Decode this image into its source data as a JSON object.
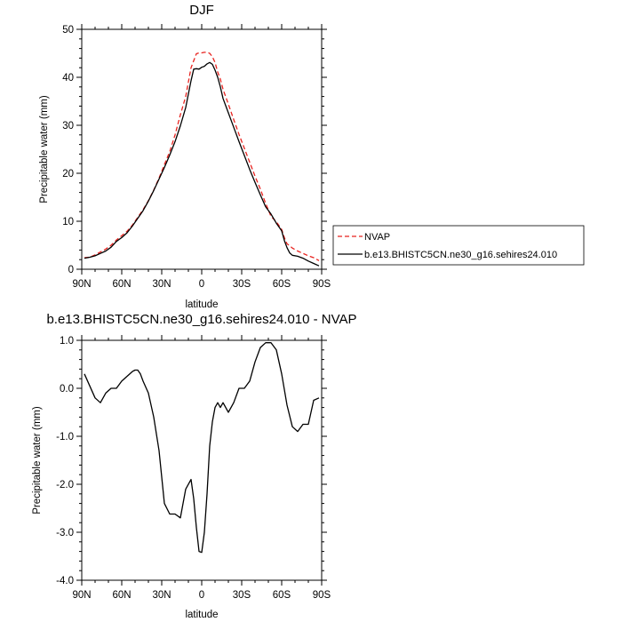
{
  "chart_data": [
    {
      "type": "line",
      "title": "DJF",
      "xlabel": "latitude",
      "ylabel": "Precipitable water (mm)",
      "xlim": [
        -90,
        90
      ],
      "ylim": [
        0,
        50
      ],
      "x_ticks": [
        -90,
        -60,
        -30,
        0,
        30,
        60,
        90
      ],
      "x_tick_labels": [
        "90N",
        "60N",
        "30N",
        "0",
        "30S",
        "60S",
        "90S"
      ],
      "y_ticks": [
        0,
        10,
        20,
        30,
        40,
        50
      ],
      "y_tick_labels": [
        "0",
        "10",
        "20",
        "30",
        "40",
        "50"
      ],
      "legend_position": "right",
      "series": [
        {
          "name": "NVAP",
          "color": "#e8231f",
          "dash": "dashed",
          "x": [
            -88,
            -84,
            -80,
            -76,
            -72,
            -68,
            -64,
            -60,
            -56,
            -52,
            -48,
            -44,
            -40,
            -36,
            -32,
            -28,
            -24,
            -20,
            -16,
            -12,
            -8,
            -4,
            -2,
            0,
            2,
            4,
            6,
            8,
            10,
            12,
            14,
            16,
            20,
            24,
            28,
            32,
            36,
            40,
            44,
            48,
            52,
            56,
            60,
            62,
            64,
            66,
            68,
            72,
            76,
            80,
            84,
            88
          ],
          "y": [
            2.4,
            2.5,
            3.0,
            3.6,
            4.2,
            5.0,
            6.1,
            7.0,
            7.9,
            9.2,
            10.8,
            12.4,
            14.3,
            16.5,
            19.0,
            21.8,
            24.5,
            28.0,
            32.2,
            36.0,
            42.0,
            44.9,
            45.1,
            45.1,
            45.2,
            45.2,
            45.0,
            44.3,
            43.1,
            41.1,
            39.6,
            37.5,
            34.4,
            31.2,
            28.1,
            25.2,
            22.3,
            19.4,
            16.7,
            13.7,
            11.0,
            9.9,
            8.3,
            6.6,
            5.3,
            4.9,
            4.4,
            3.8,
            3.3,
            2.8,
            2.4,
            1.8
          ]
        },
        {
          "name": "b.e13.BHISTC5CN.ne30_g16.sehires24.010",
          "color": "#000000",
          "dash": "solid",
          "x": [
            -88,
            -84,
            -80,
            -76,
            -72,
            -68,
            -64,
            -60,
            -56,
            -52,
            -48,
            -44,
            -40,
            -36,
            -32,
            -28,
            -24,
            -20,
            -16,
            -12,
            -8,
            -6,
            -4,
            -2,
            0,
            2,
            4,
            6,
            8,
            10,
            12,
            14,
            16,
            20,
            24,
            28,
            32,
            36,
            40,
            44,
            48,
            52,
            56,
            60,
            62,
            64,
            66,
            68,
            72,
            76,
            80,
            84,
            88
          ],
          "y": [
            2.3,
            2.5,
            2.8,
            3.3,
            3.8,
            4.6,
            5.8,
            6.6,
            7.6,
            9.0,
            10.6,
            12.2,
            14.2,
            16.4,
            18.8,
            21.2,
            23.8,
            26.6,
            29.9,
            33.7,
            39.3,
            41.7,
            41.8,
            41.7,
            42.1,
            42.3,
            42.8,
            43.1,
            42.7,
            41.5,
            40.0,
            38.0,
            35.6,
            32.6,
            29.6,
            26.6,
            23.7,
            20.8,
            18.1,
            15.5,
            13.0,
            11.5,
            9.6,
            8.0,
            6.0,
            4.5,
            3.4,
            2.9,
            2.7,
            2.3,
            1.7,
            1.2,
            0.7
          ]
        }
      ]
    },
    {
      "type": "line",
      "title": "b.e13.BHISTC5CN.ne30_g16.sehires24.010 - NVAP",
      "xlabel": "latitude",
      "ylabel": "Precipitable water (mm)",
      "xlim": [
        -90,
        90
      ],
      "ylim": [
        -4,
        1
      ],
      "x_ticks": [
        -90,
        -60,
        -30,
        0,
        30,
        60,
        90
      ],
      "x_tick_labels": [
        "90N",
        "60N",
        "30N",
        "0",
        "30S",
        "60S",
        "90S"
      ],
      "y_ticks": [
        -4,
        -3,
        -2,
        -1,
        0,
        1
      ],
      "y_tick_labels": [
        "-4.0",
        "-3.0",
        "-2.0",
        "-1.0",
        "0.0",
        "1.0"
      ],
      "series": [
        {
          "color": "#000000",
          "dash": "solid",
          "x": [
            -88,
            -84,
            -80,
            -76,
            -72,
            -68,
            -64,
            -60,
            -56,
            -52,
            -50,
            -48,
            -46,
            -44,
            -40,
            -36,
            -32,
            -28,
            -24,
            -22,
            -20,
            -16,
            -12,
            -8,
            -6,
            -4,
            -2,
            0,
            2,
            4,
            6,
            8,
            10,
            12,
            14,
            16,
            20,
            24,
            28,
            32,
            36,
            40,
            44,
            48,
            52,
            56,
            60,
            64,
            68,
            72,
            76,
            80,
            84,
            88
          ],
          "y": [
            0.3,
            0.05,
            -0.2,
            -0.3,
            -0.1,
            0.0,
            0.0,
            0.15,
            0.25,
            0.35,
            0.38,
            0.38,
            0.3,
            0.15,
            -0.1,
            -0.6,
            -1.3,
            -2.4,
            -2.62,
            -2.62,
            -2.62,
            -2.7,
            -2.1,
            -1.9,
            -2.3,
            -2.9,
            -3.4,
            -3.42,
            -3.0,
            -2.2,
            -1.2,
            -0.7,
            -0.4,
            -0.3,
            -0.4,
            -0.3,
            -0.5,
            -0.3,
            0.0,
            0.0,
            0.15,
            0.55,
            0.85,
            0.95,
            0.95,
            0.8,
            0.3,
            -0.35,
            -0.8,
            -0.9,
            -0.75,
            -0.75,
            -0.25,
            -0.2
          ]
        }
      ]
    }
  ]
}
